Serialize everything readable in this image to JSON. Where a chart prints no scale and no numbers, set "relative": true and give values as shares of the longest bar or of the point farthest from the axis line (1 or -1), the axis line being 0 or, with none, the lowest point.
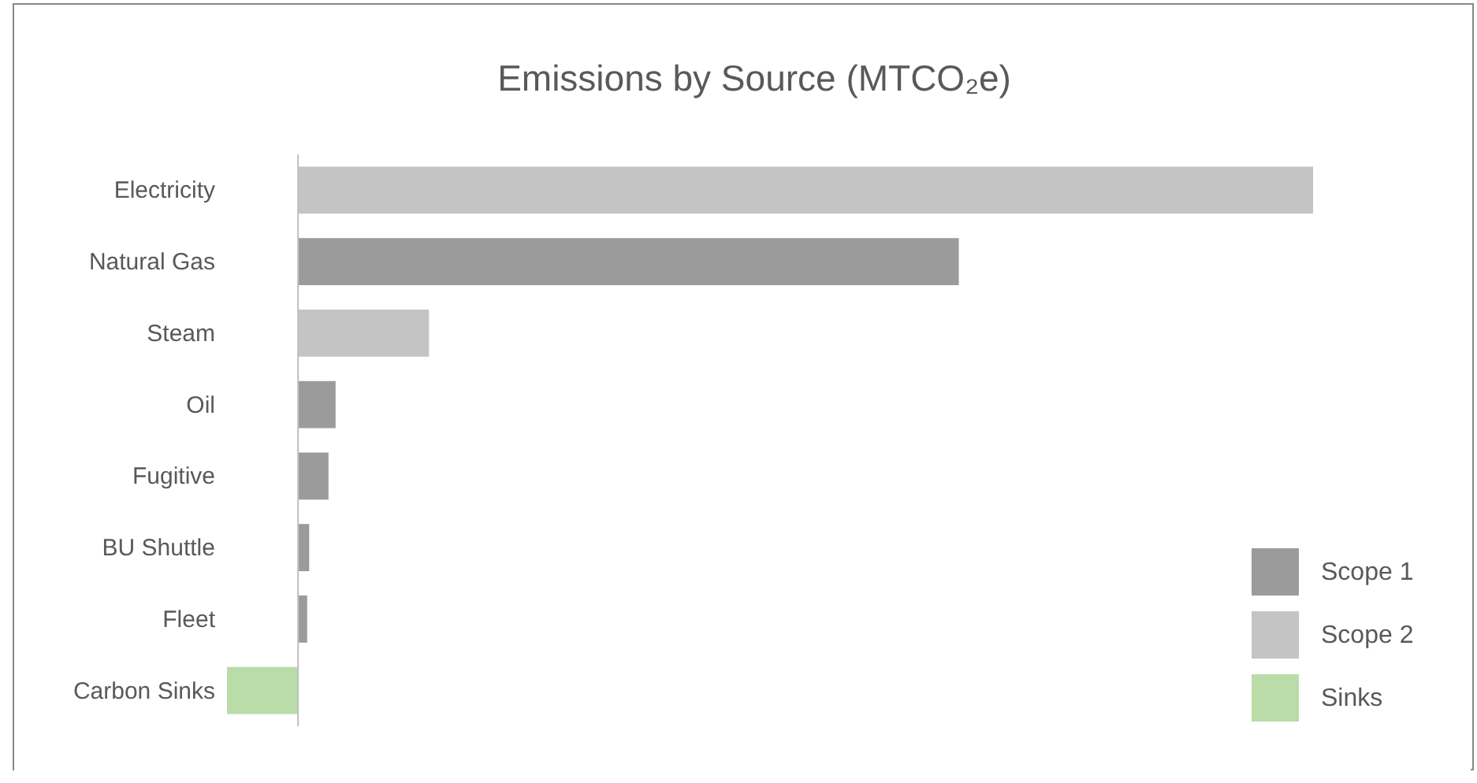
{
  "chart_data": {
    "type": "bar",
    "orientation": "horizontal",
    "relative": true,
    "title": "Emissions by Source (MTCO₂e)",
    "categories": [
      "Electricity",
      "Natural Gas",
      "Steam",
      "Oil",
      "Fugitive",
      "BU Shuttle",
      "Fleet",
      "Carbon Sinks"
    ],
    "series": [
      {
        "name": "Scope 1",
        "color": "#9b9b9b",
        "values": [
          null,
          0.651,
          null,
          0.037,
          0.03,
          0.011,
          0.009,
          null
        ]
      },
      {
        "name": "Scope 2",
        "color": "#c4c4c4",
        "values": [
          1,
          null,
          0.129,
          null,
          null,
          null,
          null,
          null
        ]
      },
      {
        "name": "Sinks",
        "color": "#b9dca9",
        "values": [
          null,
          null,
          null,
          null,
          null,
          null,
          null,
          -0.07
        ]
      }
    ],
    "legend": "bottom right"
  }
}
